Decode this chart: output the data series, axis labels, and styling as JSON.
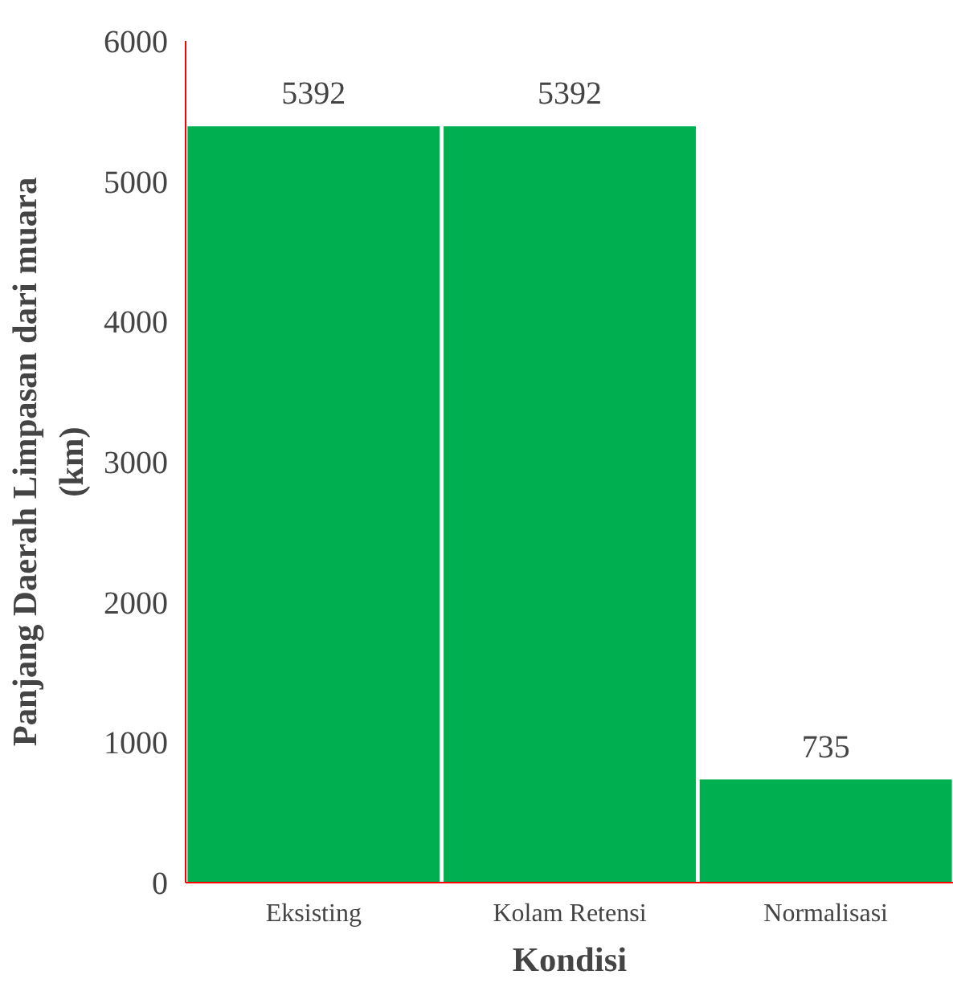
{
  "chart_data": {
    "type": "bar",
    "xlabel": "Kondisi",
    "ylabel": "Panjang Daerah Limpasan dari muara\n(km)",
    "categories": [
      "Eksisting",
      "Kolam Retensi",
      "Normalisasi"
    ],
    "values": [
      5392,
      5392,
      735
    ],
    "color": "#00b050",
    "ylim": [
      0,
      6000
    ],
    "yticks": [
      0,
      1000,
      2000,
      3000,
      4000,
      5000,
      6000
    ],
    "grid": false,
    "data_labels": true
  }
}
